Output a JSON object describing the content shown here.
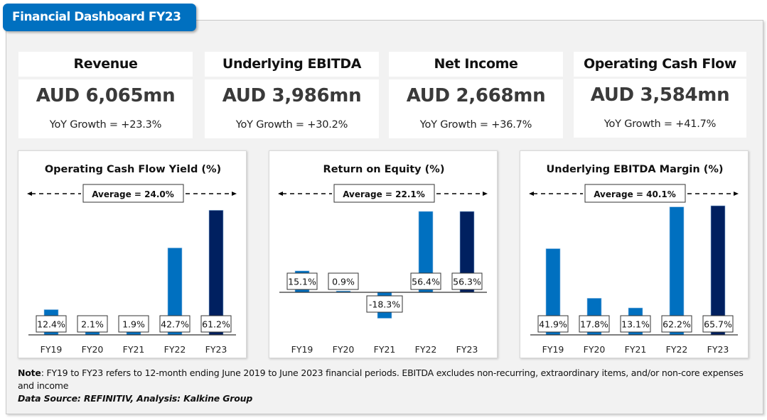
{
  "header": {
    "title": "Financial Dashboard FY23"
  },
  "colors": {
    "accent": "#0070c0",
    "dark": "#002060",
    "panel": "#f2f2f2"
  },
  "kpis": [
    {
      "label": "Revenue",
      "value": "AUD 6,065mn",
      "growth": "YoY Growth = +23.3%"
    },
    {
      "label": "Underlying EBITDA",
      "value": "AUD 3,986mn",
      "growth": "YoY Growth = +30.2%"
    },
    {
      "label": "Net Income",
      "value": "AUD 2,668mn",
      "growth": "YoY Growth = +36.7%"
    },
    {
      "label": "Operating Cash Flow",
      "value": "AUD 3,584mn",
      "growth": "YoY Growth = +41.7%"
    }
  ],
  "chart_data": [
    {
      "type": "bar",
      "title": "Operating Cash Flow Yield (%)",
      "categories": [
        "FY19",
        "FY20",
        "FY21",
        "FY22",
        "FY23"
      ],
      "values": [
        12.4,
        2.1,
        1.9,
        42.7,
        61.2
      ],
      "labels": [
        "12.4%",
        "2.1%",
        "1.9%",
        "42.7%",
        "61.2%"
      ],
      "average_label": "Average = 24.0%",
      "average": 24.0,
      "highlight_last": true,
      "xlabel": "",
      "ylabel": "",
      "ylim": [
        0,
        61.2
      ],
      "grid": false
    },
    {
      "type": "bar",
      "title": "Return on Equity (%)",
      "categories": [
        "FY19",
        "FY20",
        "FY21",
        "FY22",
        "FY23"
      ],
      "values": [
        15.1,
        0.9,
        -18.3,
        56.4,
        56.3
      ],
      "labels": [
        "15.1%",
        "0.9%",
        "-18.3%",
        "56.4%",
        "56.3%"
      ],
      "average_label": "Average = 22.1%",
      "average": 22.1,
      "highlight_last": true,
      "xlabel": "",
      "ylabel": "",
      "ylim": [
        -18.3,
        56.4
      ],
      "grid": false
    },
    {
      "type": "bar",
      "title": "Underlying EBITDA Margin (%)",
      "categories": [
        "FY19",
        "FY20",
        "FY21",
        "FY22",
        "FY23"
      ],
      "values": [
        41.9,
        17.8,
        13.1,
        62.2,
        65.7
      ],
      "labels": [
        "41.9%",
        "17.8%",
        "13.1%",
        "62.2%",
        "65.7%"
      ],
      "average_label": "Average = 40.1%",
      "average": 40.1,
      "highlight_last": true,
      "xlabel": "",
      "ylabel": "",
      "ylim": [
        0,
        65.7
      ],
      "grid": false
    }
  ],
  "footer": {
    "note_label": "Note",
    "note_text": ": FY19 to FY23 refers to 12-month ending June 2019 to June 2023 financial periods. EBITDA excludes non-recurring, extraordinary items, and/or non-core expenses and income",
    "source": "Data Source: REFINITIV, Analysis: Kalkine Group"
  }
}
